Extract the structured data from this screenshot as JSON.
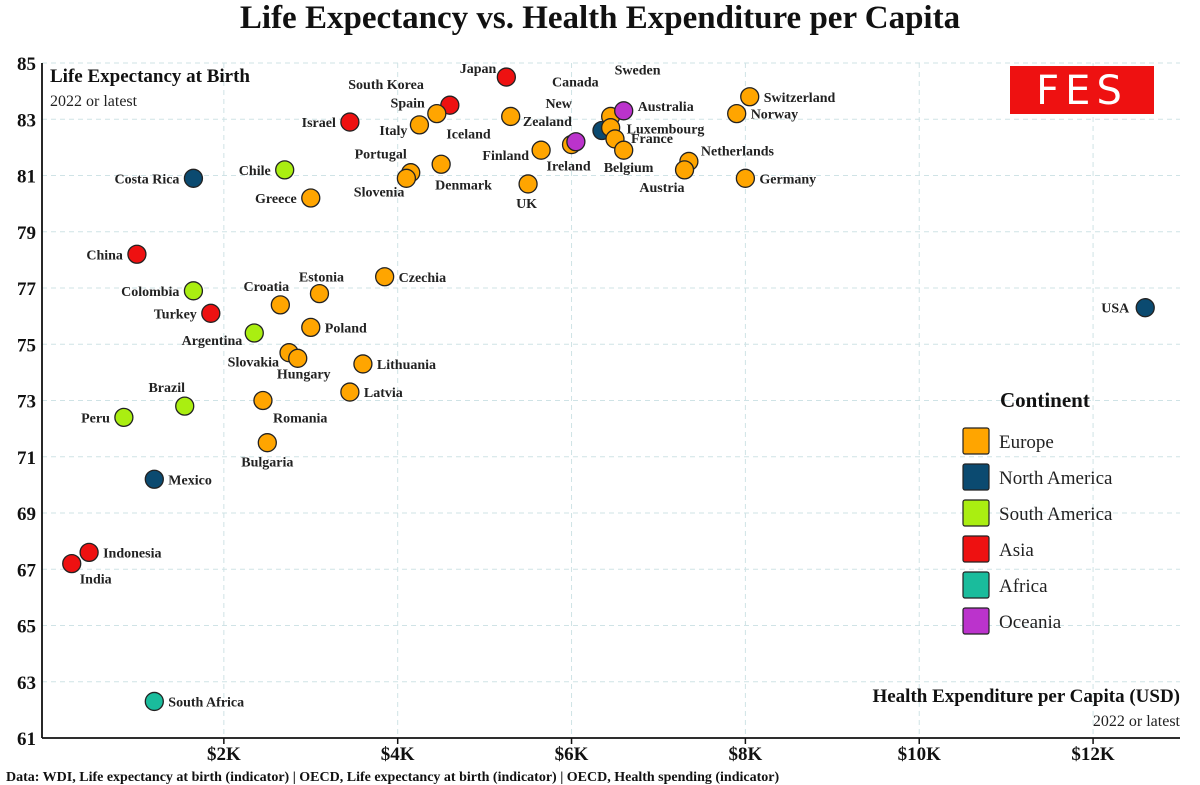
{
  "chart_data": {
    "type": "scatter",
    "title": "Life Expectancy vs. Health Expenditure per Capita",
    "ylabel": "Life Expectancy at Birth",
    "ylabel_note": "2022 or latest",
    "xlabel": "Health Expenditure per Capita (USD)",
    "xlabel_note": "2022 or latest",
    "xlim": [
      0,
      13000
    ],
    "ylim": [
      61,
      85
    ],
    "x_ticks": [
      {
        "value": 2000,
        "label": "$2K"
      },
      {
        "value": 4000,
        "label": "$4K"
      },
      {
        "value": 6000,
        "label": "$6K"
      },
      {
        "value": 8000,
        "label": "$8K"
      },
      {
        "value": 10000,
        "label": "$10K"
      },
      {
        "value": 12000,
        "label": "$12K"
      }
    ],
    "y_ticks": [
      61,
      63,
      65,
      67,
      69,
      71,
      73,
      75,
      77,
      79,
      81,
      83,
      85
    ],
    "grid": true,
    "legend_title": "Continent",
    "legend_position": "right",
    "continents": [
      {
        "name": "Europe",
        "color": "#FFA500"
      },
      {
        "name": "North America",
        "color": "#0B4A70"
      },
      {
        "name": "South America",
        "color": "#AAEE11"
      },
      {
        "name": "Asia",
        "color": "#EE1111"
      },
      {
        "name": "Africa",
        "color": "#1ABC9C"
      },
      {
        "name": "Oceania",
        "color": "#BB33CC"
      }
    ],
    "points": [
      {
        "label": "Japan",
        "continent": "Asia",
        "x": 5250,
        "y": 84.5,
        "dx": -10,
        "dy": -4,
        "anchor": "end"
      },
      {
        "label": "South Korea",
        "continent": "Asia",
        "x": 4600,
        "y": 83.5,
        "dx": -26,
        "dy": -16,
        "anchor": "end"
      },
      {
        "label": "Spain",
        "continent": "Europe",
        "x": 4450,
        "y": 83.2,
        "dx": -12,
        "dy": -6,
        "anchor": "end"
      },
      {
        "label": "Italy",
        "continent": "Europe",
        "x": 4250,
        "y": 82.8,
        "dx": -12,
        "dy": 10,
        "anchor": "end"
      },
      {
        "label": "Israel",
        "continent": "Asia",
        "x": 3450,
        "y": 82.9,
        "dx": -14,
        "dy": 5,
        "anchor": "end"
      },
      {
        "label": "Iceland",
        "continent": "Europe",
        "x": 5300,
        "y": 83.1,
        "dx": -20,
        "dy": 22,
        "anchor": "end"
      },
      {
        "label": "Portugal",
        "continent": "Europe",
        "x": 4150,
        "y": 81.1,
        "dx": -4,
        "dy": -14,
        "anchor": "end"
      },
      {
        "label": "Slovenia",
        "continent": "Europe",
        "x": 4100,
        "y": 80.9,
        "dx": -2,
        "dy": 18,
        "anchor": "end"
      },
      {
        "label": "Denmark",
        "continent": "Europe",
        "x": 4500,
        "y": 81.4,
        "dx": -6,
        "dy": 25,
        "anchor": "start"
      },
      {
        "label": "Chile",
        "continent": "South America",
        "x": 2700,
        "y": 81.2,
        "dx": -14,
        "dy": 5,
        "anchor": "end"
      },
      {
        "label": "Costa Rica",
        "continent": "North America",
        "x": 1650,
        "y": 80.9,
        "dx": -14,
        "dy": 5,
        "anchor": "end"
      },
      {
        "label": "Greece",
        "continent": "Europe",
        "x": 3000,
        "y": 80.2,
        "dx": -14,
        "dy": 5,
        "anchor": "end"
      },
      {
        "label": "Finland",
        "continent": "Europe",
        "x": 5650,
        "y": 81.9,
        "dx": -12,
        "dy": 10,
        "anchor": "end"
      },
      {
        "label": "UK",
        "continent": "Europe",
        "x": 5500,
        "y": 80.7,
        "dx": -12,
        "dy": 24,
        "anchor": "start"
      },
      {
        "label": "Ireland",
        "continent": "Europe",
        "x": 6000,
        "y": 82.1,
        "dx": -25,
        "dy": 26,
        "anchor": "start"
      },
      {
        "label": "New Zealand",
        "continent": "Oceania",
        "x": 6050,
        "y": 82.2,
        "dx": -4,
        "dy": -34,
        "anchor": "end",
        "line2": "Zealand",
        "line1": "New"
      },
      {
        "label": "Canada",
        "continent": "North America",
        "x": 6350,
        "y": 82.6,
        "dx": -50,
        "dy": -44,
        "anchor": "start"
      },
      {
        "label": "Sweden",
        "continent": "Europe",
        "x": 6450,
        "y": 83.1,
        "dx": 4,
        "dy": -42,
        "anchor": "start"
      },
      {
        "label": "Luxembourg",
        "continent": "Europe",
        "x": 6450,
        "y": 82.7,
        "dx": 16,
        "dy": 6,
        "anchor": "start"
      },
      {
        "label": "Australia",
        "continent": "Oceania",
        "x": 6600,
        "y": 83.3,
        "dx": 14,
        "dy": 0,
        "anchor": "start"
      },
      {
        "label": "France",
        "continent": "Europe",
        "x": 6500,
        "y": 82.3,
        "dx": 16,
        "dy": 4,
        "anchor": "start"
      },
      {
        "label": "Belgium",
        "continent": "Europe",
        "x": 6600,
        "y": 81.9,
        "dx": -20,
        "dy": 22,
        "anchor": "start"
      },
      {
        "label": "Netherlands",
        "continent": "Europe",
        "x": 7350,
        "y": 81.5,
        "dx": 12,
        "dy": -6,
        "anchor": "start"
      },
      {
        "label": "Austria",
        "continent": "Europe",
        "x": 7300,
        "y": 81.2,
        "dx": 0,
        "dy": 22,
        "anchor": "end"
      },
      {
        "label": "Switzerland",
        "continent": "Europe",
        "x": 8050,
        "y": 83.8,
        "dx": 14,
        "dy": 5,
        "anchor": "start"
      },
      {
        "label": "Norway",
        "continent": "Europe",
        "x": 7900,
        "y": 83.2,
        "dx": 14,
        "dy": 5,
        "anchor": "start"
      },
      {
        "label": "Germany",
        "continent": "Europe",
        "x": 8000,
        "y": 80.9,
        "dx": 14,
        "dy": 5,
        "anchor": "start"
      },
      {
        "label": "USA",
        "continent": "North America",
        "x": 12600,
        "y": 76.3,
        "dx": -16,
        "dy": 5,
        "anchor": "end"
      },
      {
        "label": "China",
        "continent": "Asia",
        "x": 1000,
        "y": 78.2,
        "dx": -14,
        "dy": 5,
        "anchor": "end"
      },
      {
        "label": "Czechia",
        "continent": "Europe",
        "x": 3850,
        "y": 77.4,
        "dx": 14,
        "dy": 5,
        "anchor": "start"
      },
      {
        "label": "Estonia",
        "continent": "Europe",
        "x": 3100,
        "y": 76.8,
        "dx": 2,
        "dy": -12,
        "anchor": "middle"
      },
      {
        "label": "Croatia",
        "continent": "Europe",
        "x": 2650,
        "y": 76.4,
        "dx": -14,
        "dy": -14,
        "anchor": "middle"
      },
      {
        "label": "Colombia",
        "continent": "South America",
        "x": 1650,
        "y": 76.9,
        "dx": -14,
        "dy": 5,
        "anchor": "end"
      },
      {
        "label": "Turkey",
        "continent": "Asia",
        "x": 1850,
        "y": 76.1,
        "dx": -14,
        "dy": 5,
        "anchor": "end"
      },
      {
        "label": "Poland",
        "continent": "Europe",
        "x": 3000,
        "y": 75.6,
        "dx": 14,
        "dy": 5,
        "anchor": "start"
      },
      {
        "label": "Argentina",
        "continent": "South America",
        "x": 2350,
        "y": 75.4,
        "dx": -12,
        "dy": 12,
        "anchor": "end"
      },
      {
        "label": "Slovakia",
        "continent": "Europe",
        "x": 2750,
        "y": 74.7,
        "dx": -10,
        "dy": 14,
        "anchor": "end"
      },
      {
        "label": "Hungary",
        "continent": "Europe",
        "x": 2850,
        "y": 74.5,
        "dx": 6,
        "dy": 20,
        "anchor": "middle"
      },
      {
        "label": "Lithuania",
        "continent": "Europe",
        "x": 3600,
        "y": 74.3,
        "dx": 14,
        "dy": 5,
        "anchor": "start"
      },
      {
        "label": "Latvia",
        "continent": "Europe",
        "x": 3450,
        "y": 73.3,
        "dx": 14,
        "dy": 5,
        "anchor": "start"
      },
      {
        "label": "Brazil",
        "continent": "South America",
        "x": 1550,
        "y": 72.8,
        "dx": -18,
        "dy": -14,
        "anchor": "middle"
      },
      {
        "label": "Romania",
        "continent": "Europe",
        "x": 2450,
        "y": 73.0,
        "dx": 10,
        "dy": 22,
        "anchor": "start"
      },
      {
        "label": "Peru",
        "continent": "South America",
        "x": 850,
        "y": 72.4,
        "dx": -14,
        "dy": 5,
        "anchor": "end"
      },
      {
        "label": "Bulgaria",
        "continent": "Europe",
        "x": 2500,
        "y": 71.5,
        "dx": 0,
        "dy": 24,
        "anchor": "middle"
      },
      {
        "label": "Mexico",
        "continent": "North America",
        "x": 1200,
        "y": 70.2,
        "dx": 14,
        "dy": 5,
        "anchor": "start"
      },
      {
        "label": "Indonesia",
        "continent": "Asia",
        "x": 450,
        "y": 67.6,
        "dx": 14,
        "dy": 5,
        "anchor": "start"
      },
      {
        "label": "India",
        "continent": "Asia",
        "x": 250,
        "y": 67.2,
        "dx": 8,
        "dy": 20,
        "anchor": "start"
      },
      {
        "label": "South Africa",
        "continent": "Africa",
        "x": 1200,
        "y": 62.3,
        "dx": 14,
        "dy": 5,
        "anchor": "start"
      }
    ]
  },
  "brand_logo": "FES",
  "source_text": "Data: WDI, Life expectancy at birth (indicator) | OECD, Life expectancy at birth (indicator) | OECD, Health spending (indicator)"
}
